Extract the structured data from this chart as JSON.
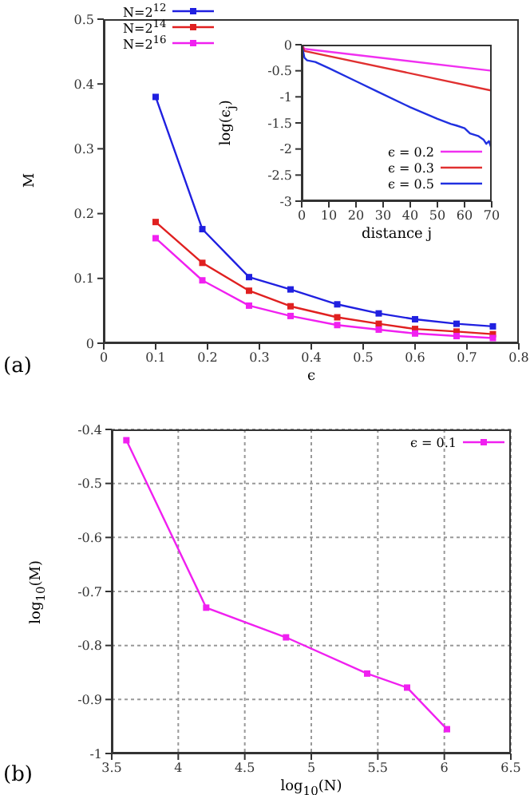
{
  "chart_data": [
    {
      "type": "line",
      "xlabel": "ϵ",
      "ylabel": "M",
      "annotations": [
        "(a)"
      ],
      "x": [
        0.1,
        0.19,
        0.28,
        0.36,
        0.45,
        0.53,
        0.6,
        0.68,
        0.75
      ],
      "xlim": [
        0,
        0.8
      ],
      "xticks": [
        0,
        0.1,
        0.2,
        0.3,
        0.4,
        0.5,
        0.6,
        0.7,
        0.8
      ],
      "ylim": [
        0,
        0.5
      ],
      "yticks": [
        0,
        0.1,
        0.2,
        0.3,
        0.4,
        0.5
      ],
      "legend": "top left",
      "marker": "square",
      "grid": false,
      "series": [
        {
          "name": "N=2$^{12}$",
          "color": "#2020e0",
          "values": [
            0.38,
            0.176,
            0.102,
            0.083,
            0.06,
            0.046,
            0.037,
            0.03,
            0.026
          ]
        },
        {
          "name": "N=2$^{14}$",
          "color": "#e02020",
          "values": [
            0.187,
            0.124,
            0.081,
            0.057,
            0.04,
            0.03,
            0.022,
            0.018,
            0.014
          ]
        },
        {
          "name": "N=2$^{16}$",
          "color": "#f020f0",
          "values": [
            0.162,
            0.097,
            0.058,
            0.042,
            0.028,
            0.021,
            0.015,
            0.011,
            0.008
          ]
        }
      ]
    },
    {
      "type": "line",
      "xlabel": "distance j",
      "ylabel": "log(ϵ$_{j}$)",
      "xlim": [
        0,
        70
      ],
      "xticks": [
        0,
        10,
        20,
        30,
        40,
        50,
        60,
        70
      ],
      "ylim": [
        -3,
        0
      ],
      "yticks": [
        -3,
        -2.5,
        -2,
        -1.5,
        -1,
        -0.5,
        0
      ],
      "legend": "bottom right",
      "marker": "none",
      "grid": false,
      "series": [
        {
          "name": "ϵ = 0.2",
          "color": "#f030f0",
          "x": [
            0,
            1,
            70
          ],
          "values": [
            0,
            -0.08,
            -0.5
          ]
        },
        {
          "name": "ϵ = 0.3",
          "color": "#e03030",
          "x": [
            0,
            1,
            70
          ],
          "values": [
            0,
            -0.12,
            -0.88
          ]
        },
        {
          "name": "ϵ = 0.5",
          "color": "#2030e0",
          "x": [
            0,
            1,
            2,
            5,
            10,
            20,
            28,
            40,
            50,
            55,
            57,
            60,
            62,
            65,
            67,
            68,
            69,
            70
          ],
          "values": [
            0,
            -0.25,
            -0.3,
            -0.33,
            -0.45,
            -0.7,
            -0.9,
            -1.2,
            -1.42,
            -1.52,
            -1.55,
            -1.6,
            -1.7,
            -1.75,
            -1.82,
            -1.9,
            -1.85,
            -2.0
          ]
        }
      ]
    },
    {
      "type": "line",
      "xlabel": "log$_{10}$(N)",
      "ylabel": "log$_{10}$(M)",
      "annotations": [
        "(b)"
      ],
      "xlim": [
        3.5,
        6.5
      ],
      "xticks": [
        3.5,
        4,
        4.5,
        5,
        5.5,
        6,
        6.5
      ],
      "ylim": [
        -1,
        -0.4
      ],
      "yticks": [
        -1,
        -0.9,
        -0.8,
        -0.7,
        -0.6,
        -0.5,
        -0.4
      ],
      "legend": "top right",
      "marker": "square",
      "grid": true,
      "series": [
        {
          "name": "ϵ = 0.1",
          "color": "#f020f0",
          "x": [
            3.61,
            4.21,
            4.81,
            5.42,
            5.72,
            6.02
          ],
          "values": [
            -0.42,
            -0.73,
            -0.785,
            -0.852,
            -0.878,
            -0.955
          ]
        }
      ]
    }
  ]
}
